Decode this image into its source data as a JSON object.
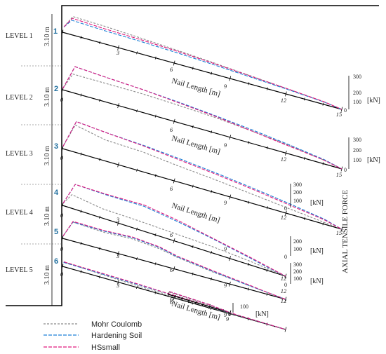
{
  "figure": {
    "x_axis_label": "Nail Length [m]",
    "y_axis_unit": "[kN]",
    "vertical_title": "AXIAL TENSILE FORCE",
    "spacing_label": "3.10 m",
    "colors": {
      "mohr": "#8a8a8a",
      "hs": "#1a7fd6",
      "hss": "#e0197d",
      "wall": "#000000",
      "nail": "#1f6e9e"
    }
  },
  "legend": [
    {
      "name": "Mohr Coulomb",
      "color": "#8a8a8a"
    },
    {
      "name": "Hardening Soil",
      "color": "#1a7fd6"
    },
    {
      "name": "HSsmall",
      "color": "#e0197d"
    }
  ],
  "levels": [
    "LEVEL 1",
    "LEVEL 2",
    "LEVEL 3",
    "LEVEL 4",
    "LEVEL 5"
  ],
  "nails": [
    "1",
    "2",
    "3",
    "4",
    "5",
    "6"
  ],
  "chart_data": [
    {
      "type": "line",
      "nail": "1",
      "xlabel": "",
      "ylabel": "",
      "x_ticks": [
        "0",
        "3",
        "6",
        "9",
        "12",
        "15"
      ],
      "y_ticks": [],
      "x": [
        0,
        0.3,
        2,
        4,
        6,
        8,
        10,
        12,
        14,
        15
      ],
      "series": [
        {
          "name": "Mohr Coulomb",
          "values": [
            95,
            300,
            285,
            255,
            220,
            180,
            135,
            90,
            40,
            0
          ]
        },
        {
          "name": "Hardening Soil",
          "values": [
            90,
            235,
            215,
            200,
            180,
            150,
            115,
            80,
            40,
            0
          ]
        },
        {
          "name": "HSsmall",
          "values": [
            95,
            270,
            245,
            230,
            205,
            170,
            130,
            90,
            45,
            0
          ]
        }
      ]
    },
    {
      "type": "line",
      "nail": "2",
      "xlabel": "Nail Length [m]",
      "ylabel": "[kN]",
      "x_ticks": [
        "0",
        "3",
        "6",
        "9",
        "12",
        "15"
      ],
      "y_ticks": [
        "0",
        "100",
        "200",
        "300"
      ],
      "x": [
        0,
        0.3,
        2,
        4,
        6,
        8,
        10,
        12,
        14,
        15
      ],
      "series": [
        {
          "name": "Mohr Coulomb",
          "values": [
            10,
            150,
            150,
            150,
            140,
            125,
            100,
            70,
            30,
            0
          ]
        },
        {
          "name": "Hardening Soil",
          "values": [
            10,
            215,
            200,
            185,
            165,
            140,
            110,
            75,
            35,
            0
          ]
        },
        {
          "name": "HSsmall",
          "values": [
            10,
            215,
            200,
            185,
            160,
            135,
            100,
            65,
            30,
            0
          ]
        }
      ]
    },
    {
      "type": "line",
      "nail": "3",
      "xlabel": "Nail Length [m]",
      "ylabel": "[kN]",
      "x_ticks": [
        "0",
        "3",
        "6",
        "9",
        "12",
        "15"
      ],
      "y_ticks": [
        "0",
        "100",
        "200",
        "300"
      ],
      "x": [
        0,
        0.3,
        2,
        4,
        6,
        8,
        10,
        12,
        14,
        15
      ],
      "series": [
        {
          "name": "Mohr Coulomb",
          "values": [
            20,
            220,
            170,
            160,
            130,
            105,
            75,
            45,
            15,
            0
          ]
        },
        {
          "name": "Hardening Soil",
          "values": [
            20,
            250,
            230,
            215,
            190,
            160,
            125,
            85,
            40,
            0
          ]
        },
        {
          "name": "HSsmall",
          "values": [
            20,
            250,
            230,
            210,
            180,
            150,
            115,
            75,
            35,
            0
          ]
        }
      ]
    },
    {
      "type": "line",
      "nail": "4",
      "xlabel": "Nail Length [m]",
      "ylabel": "[kN]",
      "x_ticks": [
        "0",
        "3",
        "6",
        "9",
        "12"
      ],
      "y_ticks": [
        "0",
        "100",
        "200",
        "300"
      ],
      "x": [
        0,
        0.3,
        2,
        4,
        6,
        8,
        10,
        11,
        12
      ],
      "series": [
        {
          "name": "Mohr Coulomb",
          "values": [
            20,
            110,
            75,
            70,
            60,
            50,
            30,
            15,
            0
          ]
        },
        {
          "name": "Hardening Soil",
          "values": [
            20,
            200,
            195,
            200,
            160,
            110,
            55,
            25,
            0
          ]
        },
        {
          "name": "HSsmall",
          "values": [
            20,
            200,
            200,
            210,
            170,
            115,
            60,
            30,
            0
          ]
        }
      ]
    },
    {
      "type": "line",
      "nail": "5",
      "xlabel": "",
      "ylabel": "[kN]",
      "x_ticks": [
        "0",
        "3",
        "6",
        "9",
        "12"
      ],
      "y_ticks": [
        "0",
        "100",
        "200"
      ],
      "x": [
        0,
        0.3,
        2,
        3.5,
        5,
        6,
        8,
        10,
        11,
        12
      ],
      "series": [
        {
          "name": "Mohr Coulomb",
          "values": [
            20,
            155,
            140,
            150,
            130,
            100,
            60,
            30,
            15,
            0
          ]
        },
        {
          "name": "Hardening Soil",
          "values": [
            20,
            155,
            150,
            160,
            140,
            105,
            65,
            30,
            15,
            0
          ]
        },
        {
          "name": "HSsmall",
          "values": [
            20,
            160,
            155,
            165,
            145,
            110,
            70,
            35,
            15,
            0
          ]
        }
      ]
    },
    {
      "type": "line",
      "nail": "6",
      "xlabel": "",
      "ylabel": "[kN]",
      "x_ticks": [
        "0",
        "3",
        "6",
        "9",
        "12"
      ],
      "y_ticks": [
        "0",
        "100",
        "200",
        "300"
      ],
      "x": [
        0,
        2,
        4,
        6,
        8,
        10,
        12
      ],
      "series": [
        {
          "name": "Mohr Coulomb",
          "values": [
            40,
            25,
            15,
            10,
            5,
            3,
            0
          ]
        },
        {
          "name": "Hardening Soil",
          "values": [
            35,
            30,
            25,
            20,
            10,
            5,
            0
          ]
        },
        {
          "name": "HSsmall",
          "values": [
            40,
            35,
            30,
            20,
            12,
            5,
            0
          ]
        }
      ]
    },
    {
      "type": "line",
      "nail": "",
      "xlabel": "Nail Length [m]",
      "ylabel": "[kN]",
      "x_ticks": [
        "0",
        "3",
        "6",
        "9"
      ],
      "y_ticks": [
        "0",
        "100"
      ],
      "x": [
        0,
        3,
        6,
        9
      ],
      "series": [
        {
          "name": "Mohr Coulomb",
          "values": [
            20,
            15,
            10,
            0
          ]
        },
        {
          "name": "Hardening Soil",
          "values": [
            25,
            20,
            15,
            0
          ]
        },
        {
          "name": "HSsmall",
          "values": [
            25,
            20,
            15,
            0
          ]
        }
      ]
    }
  ]
}
